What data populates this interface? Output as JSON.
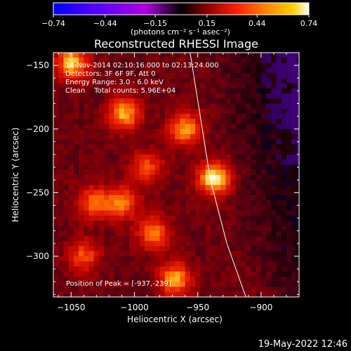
{
  "chart_data": {
    "type": "heatmap",
    "title": "Reconstructed RHESSI Image",
    "xlabel": "Heliocentric X (arcsec)",
    "ylabel": "Heliocentric Y (arcsec)",
    "xlim": [
      -1064,
      -870
    ],
    "ylim": [
      -332,
      -140
    ],
    "x_ticks": [
      -1050,
      -1000,
      -950,
      -900
    ],
    "y_ticks": [
      -150,
      -200,
      -250,
      -300
    ],
    "x_tick_labels": [
      "−1050",
      "−1000",
      "−950",
      "−900"
    ],
    "y_tick_labels": [
      "−150",
      "−200",
      "−250",
      "−300"
    ],
    "colorbar": {
      "range": [
        -0.74,
        0.74
      ],
      "tick_labels": [
        "−0.74",
        "−0.44",
        "−0.15",
        "0.15",
        "0.44",
        "0.74"
      ],
      "units": "(photons cm⁻² s⁻¹ asec⁻²)",
      "colors": [
        "#0000ff",
        "#5a00ff",
        "#b000e0",
        "#000000",
        "#8a0000",
        "#ff2000",
        "#ff8a00",
        "#ffd000",
        "#ffffff"
      ]
    },
    "annotations": [
      "14-Nov-2014 02:10:16.000 to 02:13:24.000",
      "Detectors: 3F 6F 9F, Att 0",
      "Energy Range: 3.0 - 6.0 keV",
      "Clean    Total counts: 5.96E+04"
    ],
    "peak_label": "Position of Peak = [-937,-239]",
    "peak_position": [
      -937,
      -239
    ],
    "limb_curve": [
      [
        -956,
        -140
      ],
      [
        -948,
        -190
      ],
      [
        -940,
        -240
      ],
      [
        -927,
        -290
      ],
      [
        -912,
        -332
      ]
    ],
    "sources": [
      {
        "x": -1049,
        "y": -148,
        "value": 0.62
      },
      {
        "x": -1008,
        "y": -188,
        "value": 0.58
      },
      {
        "x": -960,
        "y": -200,
        "value": 0.55
      },
      {
        "x": -937,
        "y": -239,
        "value": 0.74
      },
      {
        "x": -1010,
        "y": -258,
        "value": 0.5
      },
      {
        "x": -1032,
        "y": -258,
        "value": 0.45
      },
      {
        "x": -985,
        "y": -282,
        "value": 0.5
      },
      {
        "x": -968,
        "y": -318,
        "value": 0.58
      },
      {
        "x": -1040,
        "y": -300,
        "value": 0.4
      },
      {
        "x": -990,
        "y": -230,
        "value": 0.38
      }
    ]
  },
  "footer": {
    "date": "19-May-2022 12:46"
  }
}
